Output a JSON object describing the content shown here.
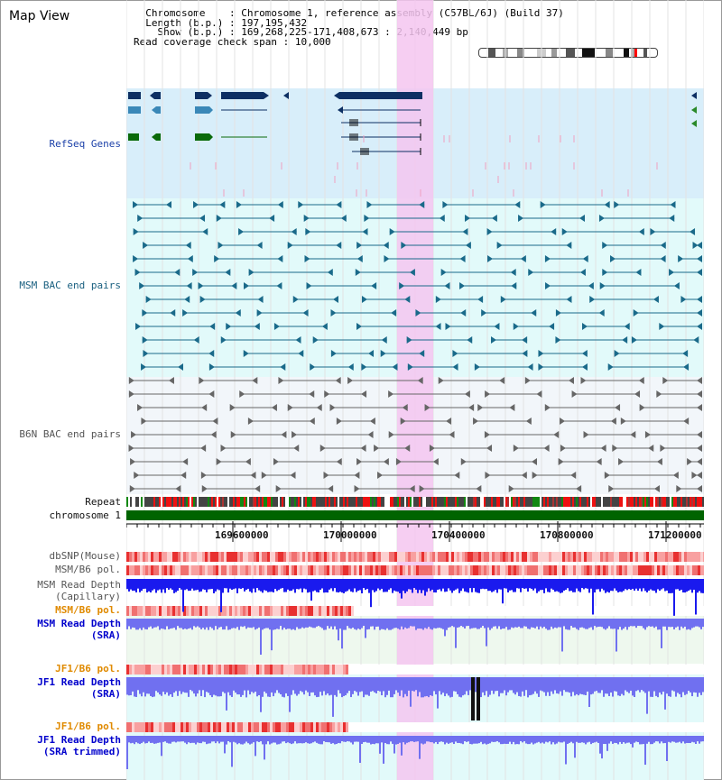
{
  "view_title": "Map View",
  "info": {
    "chromosome_key": "Chromosome",
    "chromosome_val": "Chromosome 1, reference assembly (C57BL/6J) (Build 37)",
    "length_key": "Length (b.p.)",
    "length_val": "197,195,432",
    "show_key": "Show (b.p.)",
    "show_val": "169,268,225-171,408,673 : 2,140,449 bp",
    "span_key": "Read coverage check span",
    "span_val": "10,000"
  },
  "tracks": {
    "refseq": "RefSeq Genes",
    "msm_bac": "MSM BAC end pairs",
    "b6n_bac": "B6N BAC end pairs",
    "repeat": "Repeat",
    "chromosome": "chromosome 1",
    "dbsnp": "dbSNP(Mouse)",
    "msm_b6_pol": "MSM/B6 pol.",
    "msm_depth_cap_1": "MSM Read Depth",
    "msm_depth_cap_2": "(Capillary)",
    "msm_b6_pol_2": "MSM/B6 pol.",
    "msm_depth_sra_1": "MSM Read Depth",
    "msm_depth_sra_2": "(SRA)",
    "jf1_b6_pol": "JF1/B6 pol.",
    "jf1_depth_sra_1": "JF1 Read Depth",
    "jf1_depth_sra_2": "(SRA)",
    "jf1_b6_pol_2": "JF1/B6 pol.",
    "jf1_depth_trim_1": "JF1 Read Depth",
    "jf1_depth_trim_2": "(SRA trimmed)"
  },
  "axis_ticks": [
    "169600000",
    "170000000",
    "170400000",
    "170800000",
    "171200000"
  ],
  "colors": {
    "highlight": "#f4c6f0",
    "refseq_bg": "#d8eefa",
    "msm_bg": "#e2fafa",
    "b6n_bg": "#f2f6fa",
    "gene_navy": "#0d2f63",
    "gene_blue": "#3a88b8",
    "gene_green": "#0a6a0a",
    "chromosome_bar": "#006400",
    "depth_blue": "#1a1aee",
    "depth_light": "#7070f0"
  }
}
